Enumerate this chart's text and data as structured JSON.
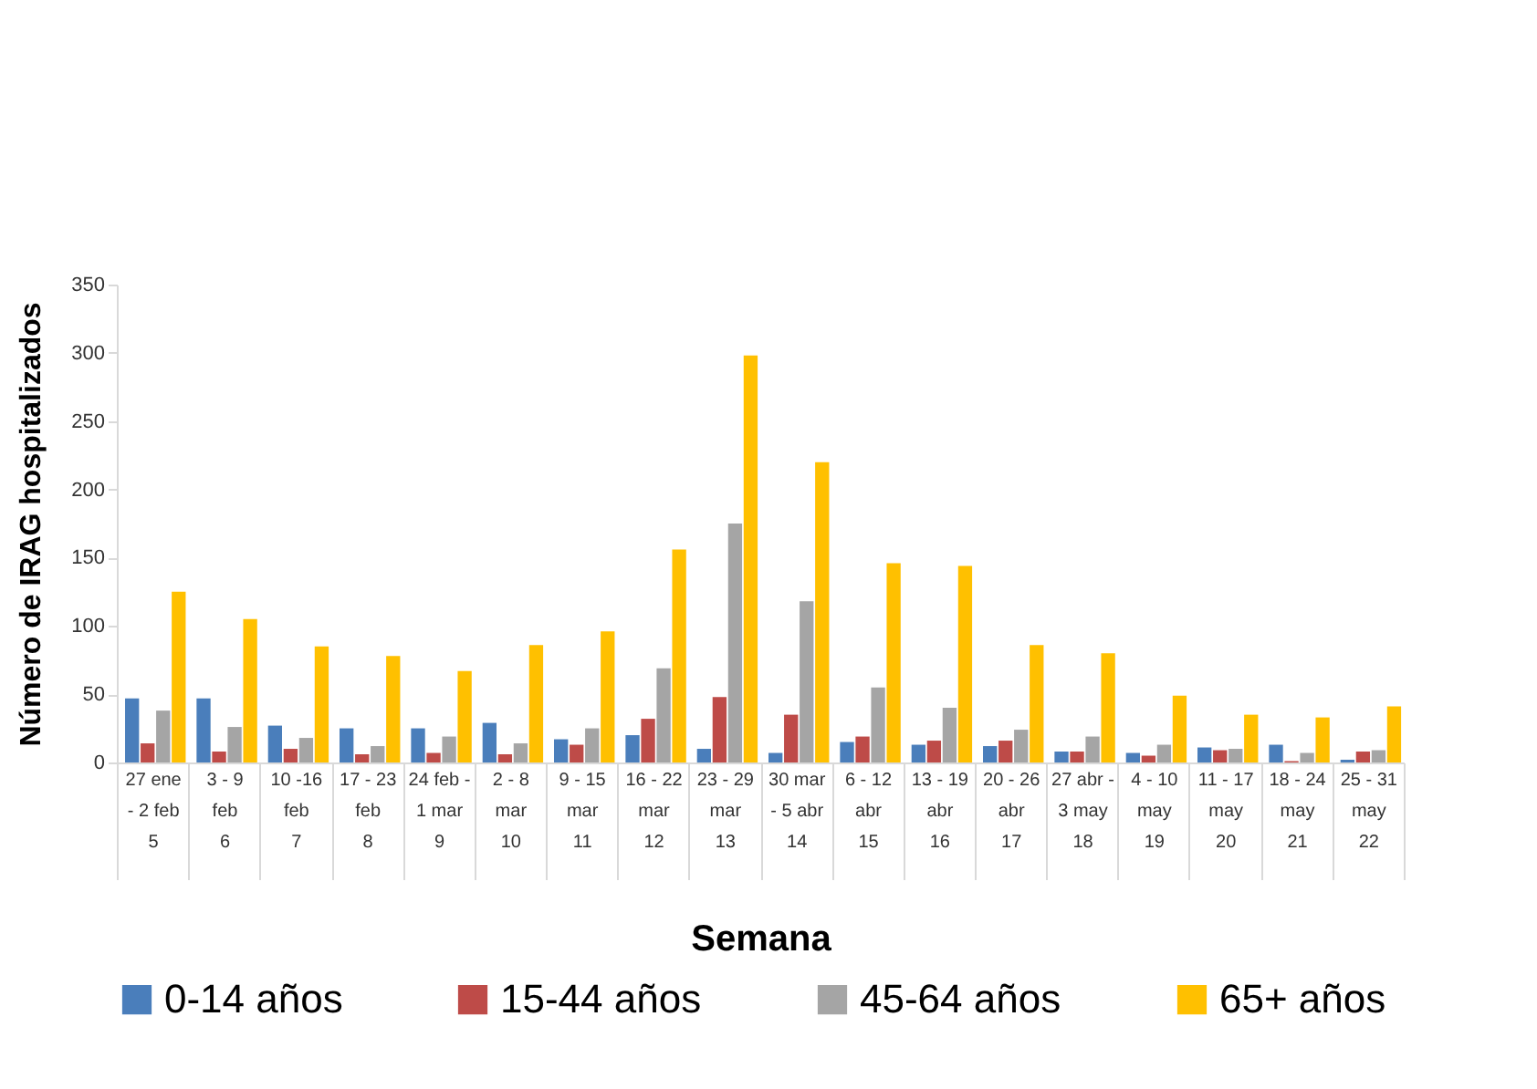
{
  "chart_data": {
    "type": "bar",
    "xlabel": "Semana",
    "ylabel": "Número de IRAG hospitalizados",
    "categories": [
      "27 ene\n- 2 feb\n5",
      "3 - 9\nfeb\n6",
      "10 -16\nfeb\n7",
      "17 - 23\nfeb\n8",
      "24 feb -\n1 mar\n9",
      "2 - 8\nmar\n10",
      "9 - 15\nmar\n11",
      "16 - 22\nmar\n12",
      "23 - 29\nmar\n13",
      "30 mar\n- 5 abr\n14",
      "6 - 12\nabr\n15",
      "13 - 19\nabr\n16",
      "20 - 26\nabr\n17",
      "27 abr -\n3 may\n18",
      "4 - 10\nmay\n19",
      "11 - 17\nmay\n20",
      "18 - 24\nmay\n21",
      "25 - 31\nmay\n22"
    ],
    "series": [
      {
        "name": "0-14 años",
        "color": "#4a7ebb",
        "values": [
          47,
          47,
          27,
          25,
          25,
          29,
          17,
          20,
          10,
          7,
          15,
          13,
          12,
          8,
          7,
          11,
          13,
          2
        ]
      },
      {
        "name": "15-44 años",
        "color": "#be4b48",
        "values": [
          14,
          8,
          10,
          6,
          7,
          6,
          13,
          32,
          48,
          35,
          19,
          16,
          16,
          8,
          5,
          9,
          1,
          8
        ]
      },
      {
        "name": "45-64 años",
        "color": "#a5a5a5",
        "values": [
          38,
          26,
          18,
          12,
          19,
          14,
          25,
          69,
          175,
          118,
          55,
          40,
          24,
          19,
          13,
          10,
          7,
          9
        ]
      },
      {
        "name": "65+ años",
        "color": "#ffc000",
        "values": [
          125,
          105,
          85,
          78,
          67,
          86,
          96,
          156,
          298,
          220,
          146,
          144,
          86,
          80,
          49,
          35,
          33,
          41
        ]
      }
    ],
    "ylim": [
      0,
      350
    ],
    "yticks": [
      0,
      50,
      100,
      150,
      200,
      250,
      300,
      350
    ],
    "grid": false,
    "legend": "bottom"
  }
}
